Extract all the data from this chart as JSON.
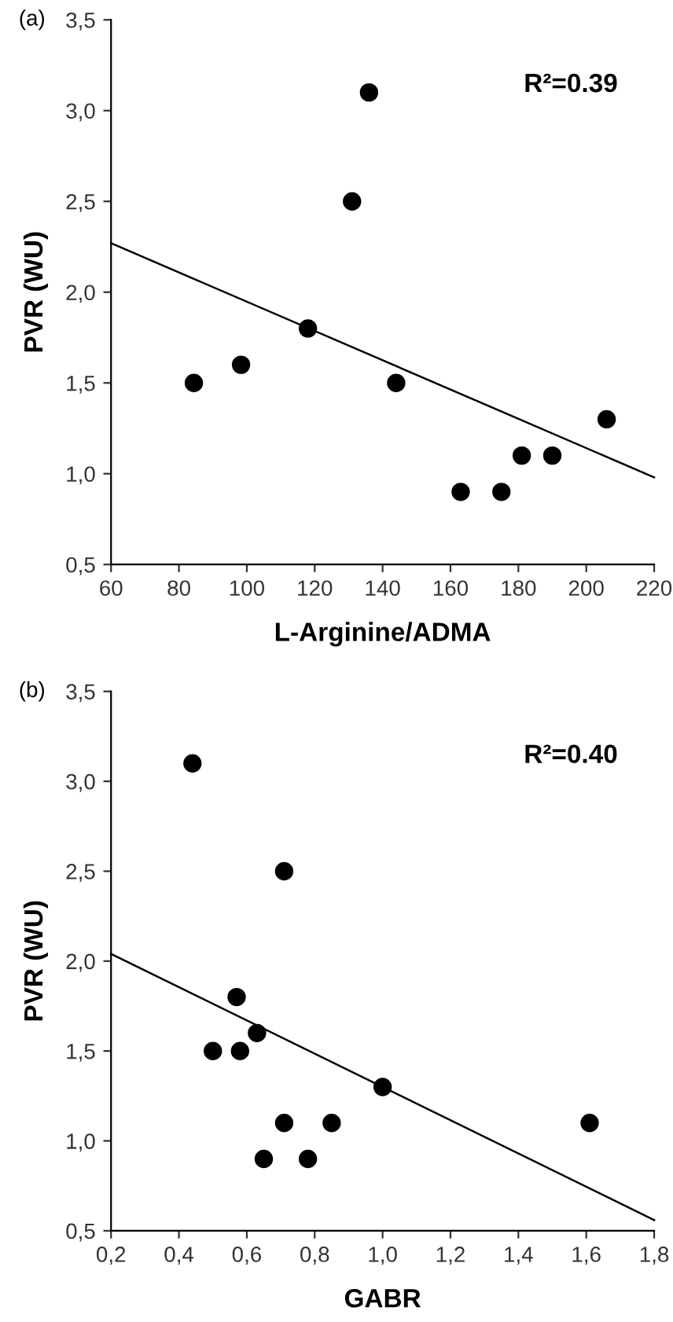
{
  "chart_data": [
    {
      "type": "scatter",
      "title": "(a)",
      "xlabel": "L-Arginine/ADMA",
      "ylabel": "PVR (WU)",
      "annotations": [
        "R²=0.39"
      ],
      "xlim": [
        60,
        220
      ],
      "xticks": [
        60,
        80,
        100,
        120,
        140,
        160,
        180,
        200,
        220
      ],
      "ylim": [
        0.5,
        3.5
      ],
      "yticks": [
        {
          "value": 0.5,
          "label": "0,5"
        },
        {
          "value": 1.0,
          "label": "1,0"
        },
        {
          "value": 1.5,
          "label": "1,5"
        },
        {
          "value": 2.0,
          "label": "2,0"
        },
        {
          "value": 2.5,
          "label": "2,5"
        },
        {
          "value": 3.0,
          "label": "3,0"
        },
        {
          "value": 3.5,
          "label": "3,5"
        }
      ],
      "series": [
        {
          "marker": "circle",
          "color": "#000000",
          "x": [
            84.4,
            98.3,
            118,
            131,
            136,
            144,
            163,
            175,
            181,
            190,
            206
          ],
          "values": [
            1.5,
            1.6,
            1.8,
            2.5,
            3.1,
            1.5,
            0.9,
            0.9,
            1.1,
            1.1,
            1.3
          ]
        },
        {
          "type": "line",
          "color": "#000000",
          "x": [
            60,
            220
          ],
          "values": [
            2.27,
            0.98
          ]
        }
      ]
    },
    {
      "type": "scatter",
      "title": "(b)",
      "xlabel": "GABR",
      "ylabel": "PVR (WU)",
      "annotations": [
        "R²=0.40"
      ],
      "xlim": [
        0.2,
        1.8
      ],
      "xticks": [
        {
          "value": 0.2,
          "label": "0,2"
        },
        {
          "value": 0.4,
          "label": "0,4"
        },
        {
          "value": 0.6,
          "label": "0,6"
        },
        {
          "value": 0.8,
          "label": "0,8"
        },
        {
          "value": 1.0,
          "label": "1,0"
        },
        {
          "value": 1.2,
          "label": "1,2"
        },
        {
          "value": 1.4,
          "label": "1,4"
        },
        {
          "value": 1.6,
          "label": "1,6"
        },
        {
          "value": 1.8,
          "label": "1,8"
        }
      ],
      "ylim": [
        0.5,
        3.5
      ],
      "yticks": [
        {
          "value": 0.5,
          "label": "0,5"
        },
        {
          "value": 1.0,
          "label": "1,0"
        },
        {
          "value": 1.5,
          "label": "1,5"
        },
        {
          "value": 2.0,
          "label": "2,0"
        },
        {
          "value": 2.5,
          "label": "2,5"
        },
        {
          "value": 3.0,
          "label": "3,0"
        },
        {
          "value": 3.5,
          "label": "3,5"
        }
      ],
      "series": [
        {
          "marker": "circle",
          "color": "#000000",
          "x": [
            0.44,
            0.5,
            0.57,
            0.58,
            0.63,
            0.71,
            0.71,
            0.65,
            0.78,
            0.85,
            1.0,
            1.61
          ],
          "values": [
            3.1,
            1.5,
            1.8,
            1.5,
            1.6,
            2.5,
            1.1,
            0.9,
            0.9,
            1.1,
            1.3,
            1.1
          ]
        },
        {
          "type": "line",
          "color": "#000000",
          "x": [
            0.2,
            1.8
          ],
          "values": [
            2.04,
            0.56
          ]
        }
      ]
    }
  ]
}
